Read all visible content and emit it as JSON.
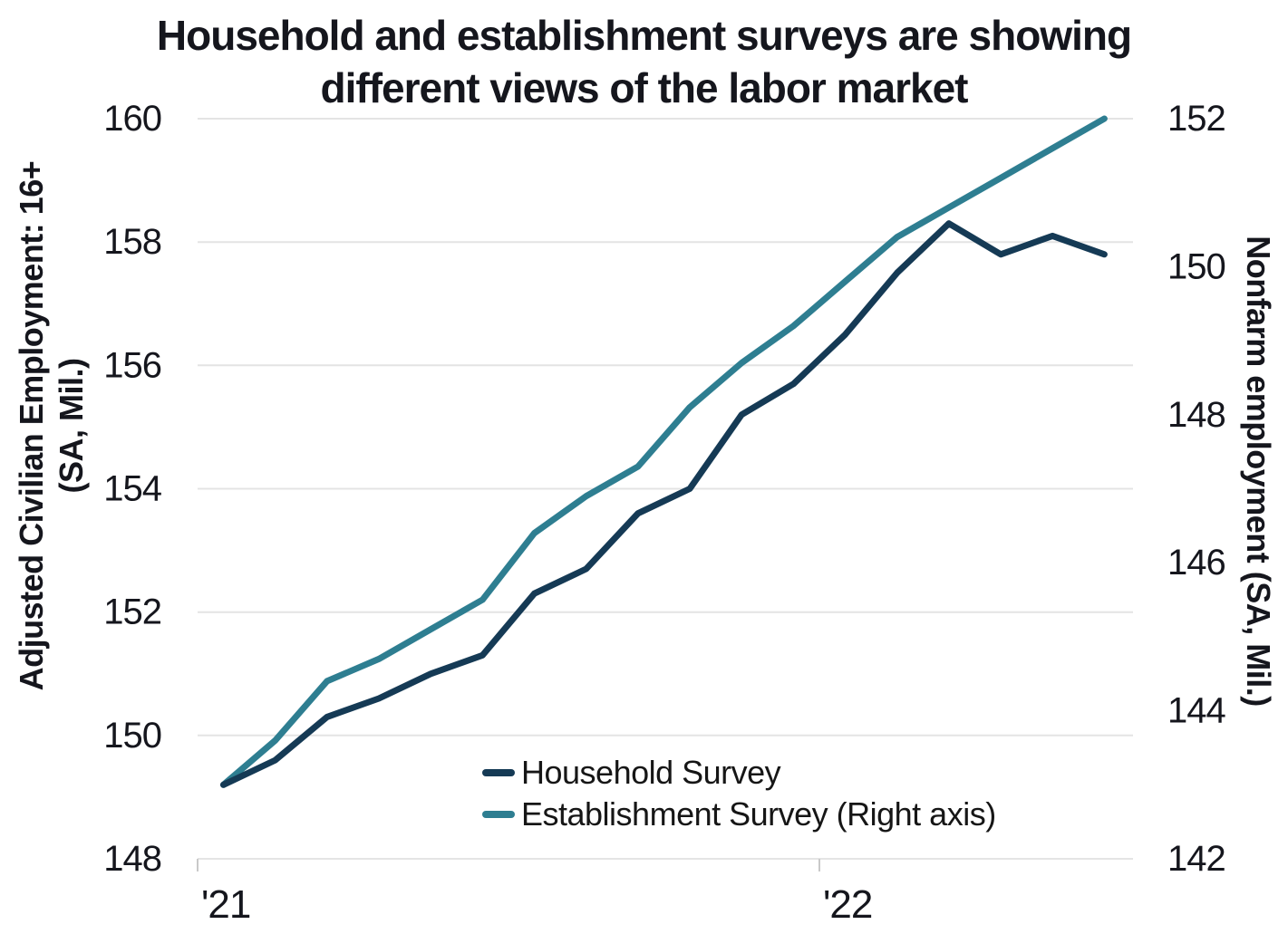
{
  "title": {
    "line1": "Household and establishment surveys are showing",
    "line2": "different views of the labor market"
  },
  "left_axis": {
    "title_line1": "Adjusted Civilian Employment: 16+",
    "title_line2": "(SA, Mil.)",
    "ticks": [
      160,
      158,
      156,
      154,
      152,
      150,
      148
    ]
  },
  "right_axis": {
    "title": "Nonfarm employment (SA, Mil.)",
    "ticks": [
      152,
      150,
      148,
      146,
      144,
      142
    ]
  },
  "x_axis": {
    "tick_labels": [
      "'21",
      "'22"
    ]
  },
  "legend": [
    {
      "label": "Household Survey",
      "color": "#153A55"
    },
    {
      "label": "Establishment Survey (Right axis)",
      "color": "#2E7E91"
    }
  ],
  "colors": {
    "household": "#153A55",
    "establishment": "#2E7E91",
    "gridline": "#e4e4e4",
    "tick_mark": "#c9c9c9",
    "text": "#15161d"
  },
  "chart_data": {
    "type": "line",
    "x": [
      "Jan 2021",
      "Feb 2021",
      "Mar 2021",
      "Apr 2021",
      "May 2021",
      "Jun 2021",
      "Jul 2021",
      "Aug 2021",
      "Sep 2021",
      "Oct 2021",
      "Nov 2021",
      "Dec 2021",
      "Jan 2022",
      "Feb 2022",
      "Mar 2022",
      "Apr 2022",
      "May 2022",
      "Jun 2022"
    ],
    "x_tick_labels_shown": [
      "'21",
      "'22"
    ],
    "series": [
      {
        "name": "Household Survey",
        "axis": "left",
        "color": "#153A55",
        "values": [
          149.2,
          149.6,
          150.3,
          150.6,
          151.0,
          151.3,
          152.3,
          152.7,
          153.6,
          154.0,
          155.2,
          155.7,
          156.5,
          157.5,
          158.3,
          157.8,
          158.1,
          157.8
        ]
      },
      {
        "name": "Establishment Survey (Right axis)",
        "axis": "right",
        "color": "#2E7E91",
        "values": [
          143.0,
          143.6,
          144.4,
          144.7,
          145.1,
          145.5,
          146.4,
          146.9,
          147.3,
          148.1,
          148.7,
          149.2,
          149.8,
          150.4,
          150.8,
          151.2,
          151.6,
          152.0
        ]
      }
    ],
    "title": "Household and establishment surveys are showing different views of the labor market",
    "left_ylabel": "Adjusted Civilian Employment: 16+ (SA, Mil.)",
    "right_ylabel": "Nonfarm employment (SA, Mil.)",
    "left_ylim": [
      148,
      160
    ],
    "right_ylim": [
      142,
      152
    ],
    "grid": "horizontal",
    "legend_position": "inside-bottom-center"
  }
}
